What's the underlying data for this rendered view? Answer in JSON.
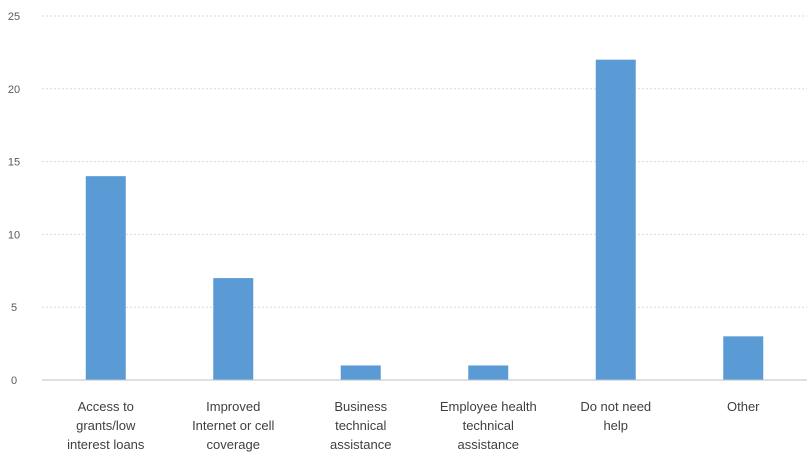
{
  "chart_data": {
    "type": "bar",
    "title": "",
    "xlabel": "",
    "ylabel": "",
    "categories": [
      [
        "Access to",
        "grants/low",
        "interest loans"
      ],
      [
        "Improved",
        "Internet or cell",
        "coverage"
      ],
      [
        "Business",
        "technical",
        "assistance"
      ],
      [
        "Employee health",
        "technical",
        "assistance"
      ],
      [
        "Do not need",
        "help"
      ],
      [
        "Other"
      ]
    ],
    "values": [
      14,
      7,
      1,
      1,
      22,
      3
    ],
    "ylim": [
      0,
      25
    ],
    "yticks": [
      0,
      5,
      10,
      15,
      20,
      25
    ],
    "grid": true,
    "legend": "none",
    "bar_color": "#5b9bd5"
  }
}
